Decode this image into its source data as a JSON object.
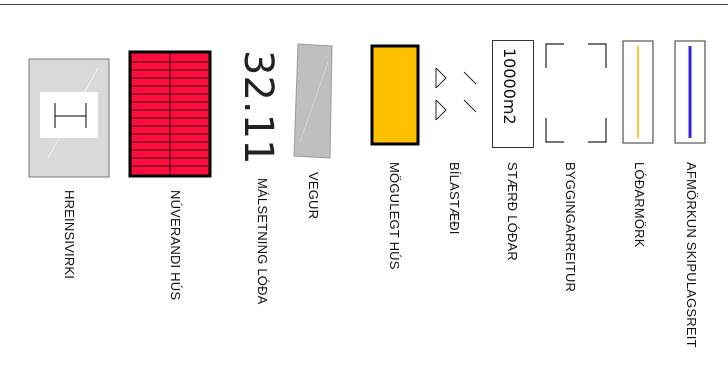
{
  "legend": {
    "hreinsivirki": {
      "label": "HREINSIVIRKI",
      "color": "#d9d9d9"
    },
    "nuverandi_hus": {
      "label": "NÚVERANDI HÚS",
      "color": "#ff0d3f"
    },
    "malsetning_loda": {
      "label": "MÁLSETNING LÓÐA",
      "sample_value": "32.11"
    },
    "vegur": {
      "label": "VEGUR",
      "color": "#bfbfbf"
    },
    "mogulegt_hus": {
      "label": "MÖGULEGT HÚS",
      "color": "#ffc000"
    },
    "bilastaedi": {
      "label": "BÍLASTÆÐI"
    },
    "staerd_lodar": {
      "label": "STÆRÐ LÓÐAR",
      "sample_value": "10000m2"
    },
    "byggingarreitur": {
      "label": "BYGGINGARREITUR"
    },
    "lodarmork": {
      "label": "LÓÐARMÖRK",
      "color": "#f0b400"
    },
    "afmorkun": {
      "label": "AFMÖRKUN SKIPULAGSREIT",
      "color": "#3b1fe0"
    }
  }
}
